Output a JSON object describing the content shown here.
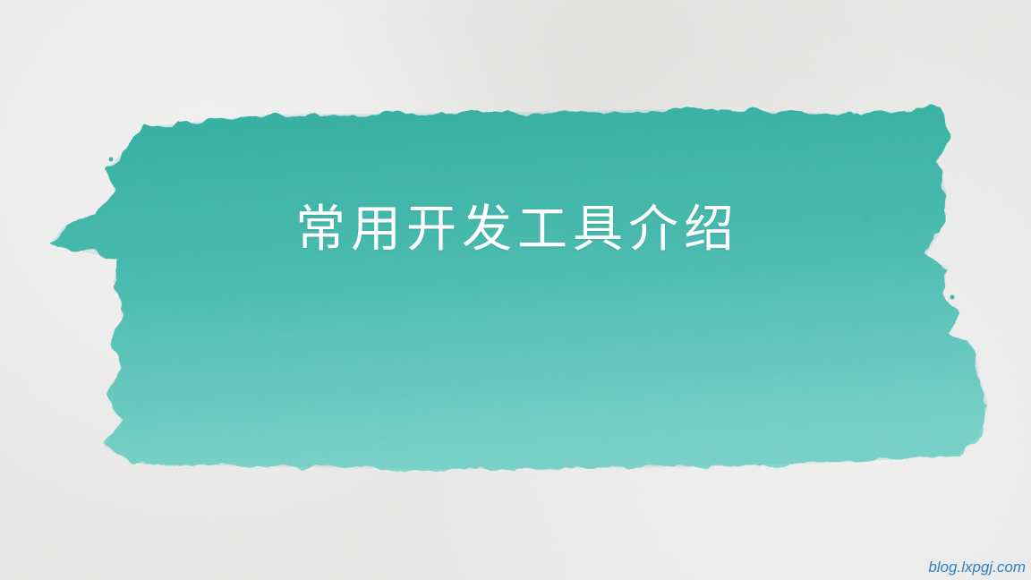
{
  "slide": {
    "title": "常用开发工具介绍",
    "watermark": "blog.lxpgj.com"
  },
  "colors": {
    "background": "#ebebea",
    "brush_dark": "#34b3a6",
    "brush_light": "#7fd6cc",
    "title": "#ffffff",
    "watermark": "#2f7fc1"
  }
}
